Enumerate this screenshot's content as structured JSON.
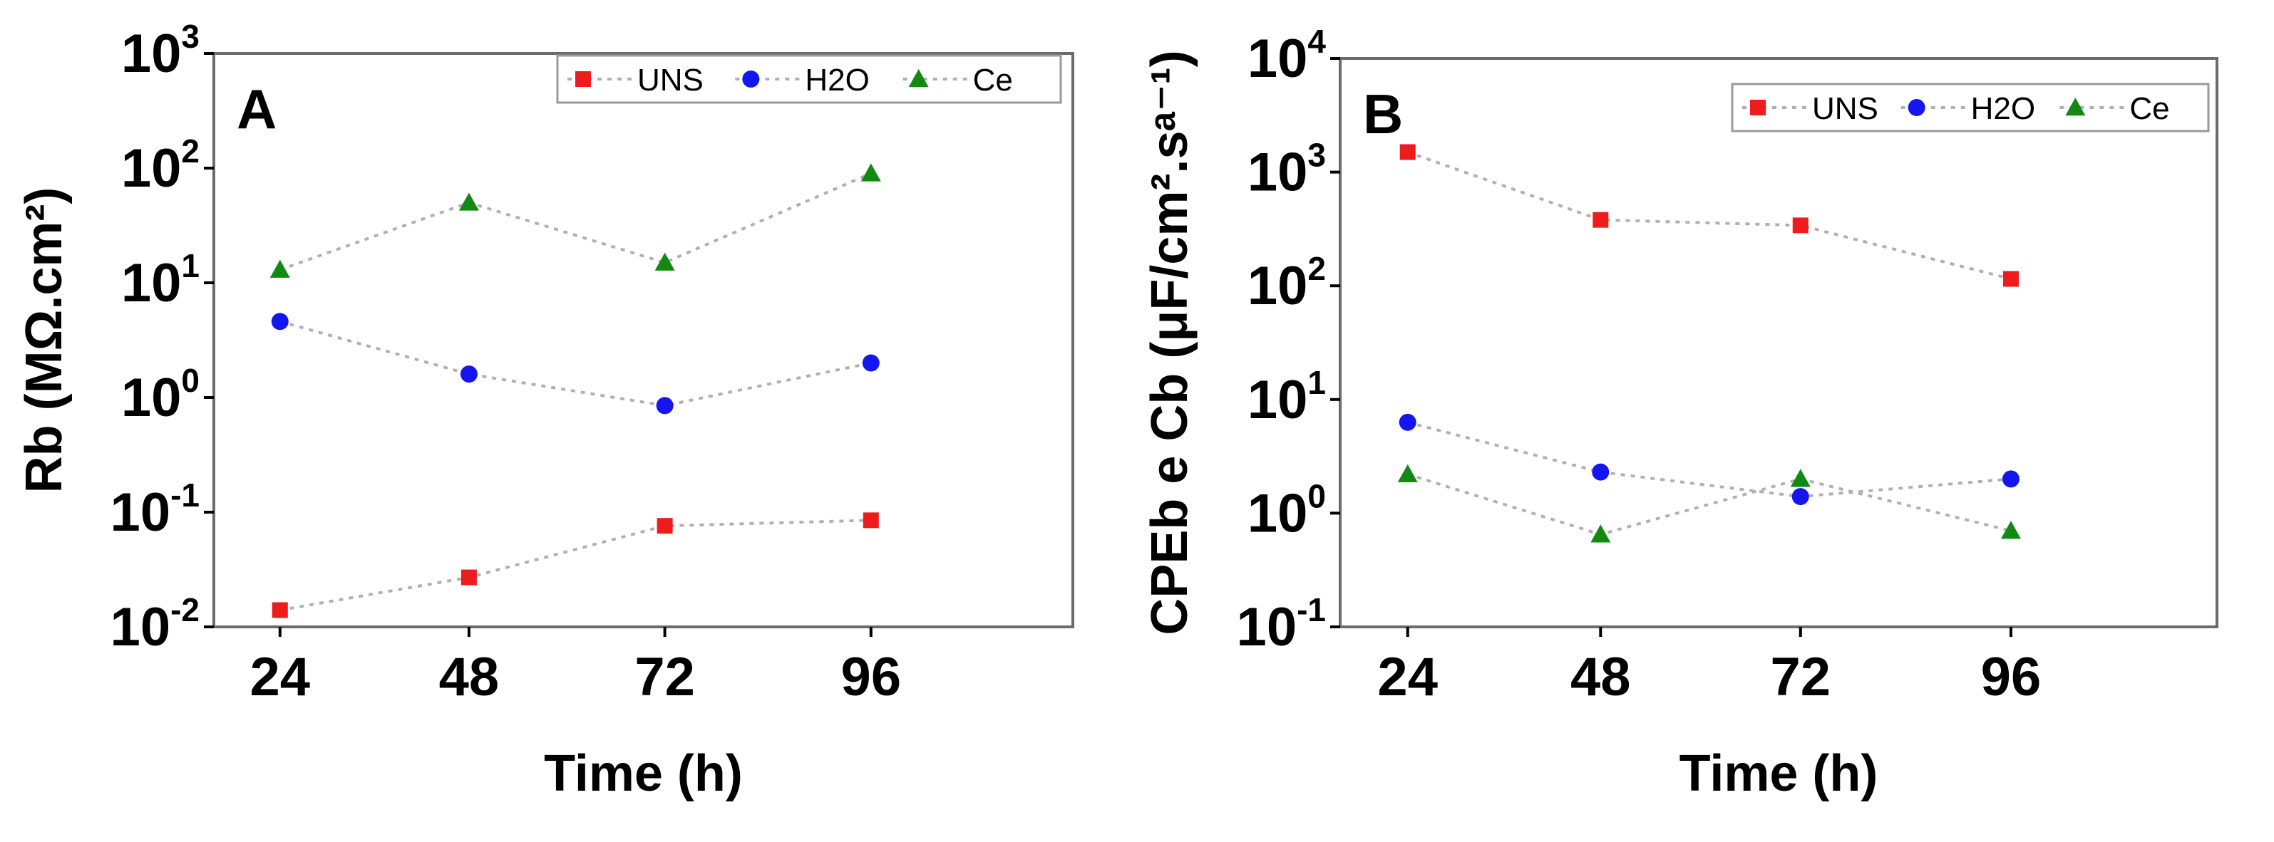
{
  "colors": {
    "UNS": "#ee1c1c",
    "H2O": "#1515f0",
    "Ce": "#128a12"
  },
  "chart_data": [
    {
      "type": "scatter",
      "panel_label": "A",
      "xlabel": "Time (h)",
      "ylabel": "Rb (MΩ.cm²)",
      "yscale": "log",
      "ylim": [
        0.01,
        1000
      ],
      "x": [
        24,
        48,
        72,
        96
      ],
      "x_tick_labels": [
        "24",
        "48",
        "72",
        "96"
      ],
      "y_ticks": [
        {
          "value": 0.01,
          "base": "10",
          "exp": "-2"
        },
        {
          "value": 0.1,
          "base": "10",
          "exp": "-1"
        },
        {
          "value": 1,
          "base": "10",
          "exp": "0"
        },
        {
          "value": 10,
          "base": "10",
          "exp": "1"
        },
        {
          "value": 100,
          "base": "10",
          "exp": "2"
        },
        {
          "value": 1000,
          "base": "10",
          "exp": "3"
        }
      ],
      "legend_position": "top-right",
      "series": [
        {
          "name": "UNS",
          "marker": "square",
          "values": [
            0.014,
            0.027,
            0.076,
            0.085
          ]
        },
        {
          "name": "H2O",
          "marker": "circle",
          "values": [
            4.6,
            1.6,
            0.85,
            2.0
          ]
        },
        {
          "name": "Ce",
          "marker": "triangle",
          "values": [
            13,
            50,
            15,
            90
          ]
        }
      ]
    },
    {
      "type": "scatter",
      "panel_label": "B",
      "xlabel": "Time (h)",
      "ylabel": "CPEb e Cb (μF/cm².sᵃ⁻¹)",
      "yscale": "log",
      "ylim": [
        0.1,
        10000
      ],
      "x": [
        24,
        48,
        72,
        96
      ],
      "x_tick_labels": [
        "24",
        "48",
        "72",
        "96"
      ],
      "y_ticks": [
        {
          "value": 0.1,
          "base": "10",
          "exp": "-1"
        },
        {
          "value": 1,
          "base": "10",
          "exp": "0"
        },
        {
          "value": 10,
          "base": "10",
          "exp": "1"
        },
        {
          "value": 100,
          "base": "10",
          "exp": "2"
        },
        {
          "value": 1000,
          "base": "10",
          "exp": "3"
        },
        {
          "value": 10000,
          "base": "10",
          "exp": "4"
        }
      ],
      "legend_position": "top-right",
      "series": [
        {
          "name": "UNS",
          "marker": "square",
          "values": [
            1500,
            380,
            340,
            115
          ]
        },
        {
          "name": "H2O",
          "marker": "circle",
          "values": [
            6.3,
            2.3,
            1.4,
            2.0
          ]
        },
        {
          "name": "Ce",
          "marker": "triangle",
          "values": [
            2.2,
            0.65,
            2.0,
            0.7
          ]
        }
      ]
    }
  ]
}
